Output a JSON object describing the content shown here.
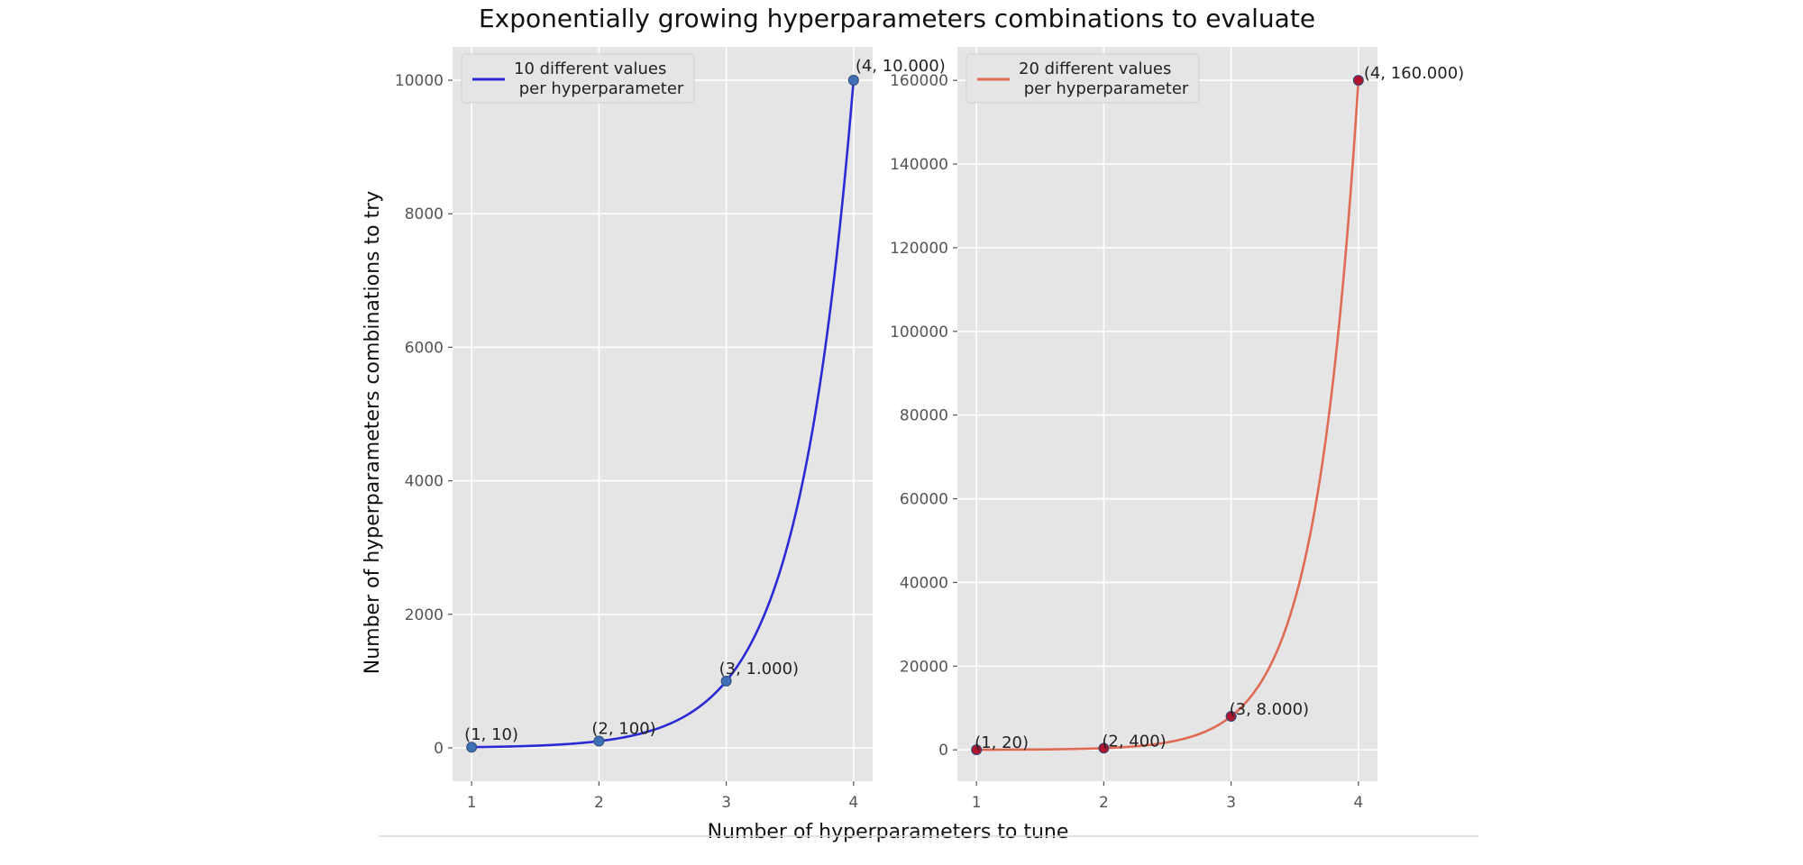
{
  "chart_data": {
    "title": "Exponentially growing hyperparameters combinations to evaluate",
    "xlabel": "Number of hyperparameters to tune",
    "ylabel": "Number of hyperparameters combinations to try",
    "subplots": [
      {
        "type": "line",
        "legend": "10 different values\n per hyperparameter",
        "legend_placement": "top-left",
        "color": "#2b2bd6",
        "marker_color": "#3f6fb5",
        "base": 10,
        "x": [
          1,
          2,
          3,
          4
        ],
        "y": [
          10,
          100,
          1000,
          10000
        ],
        "annotations": [
          "(1,  10)",
          "(2,  100)",
          "(3,  1.000)",
          "(4,  10.000)"
        ],
        "xlim": [
          0.85,
          4.15
        ],
        "ylim": [
          -500,
          10500
        ],
        "xticks": [
          1,
          2,
          3,
          4
        ],
        "yticks": [
          0,
          2000,
          4000,
          6000,
          8000,
          10000
        ],
        "grid": true
      },
      {
        "type": "line",
        "legend": "20 different values\n per hyperparameter",
        "legend_placement": "top-left",
        "color": "#e06b55",
        "marker_color": "#b01530",
        "base": 20,
        "x": [
          1,
          2,
          3,
          4
        ],
        "y": [
          20,
          400,
          8000,
          160000
        ],
        "annotations": [
          "(1,  20)",
          "(2,  400)",
          "(3,  8.000)",
          "(4,  160.000)"
        ],
        "xlim": [
          0.85,
          4.15
        ],
        "ylim": [
          -7500,
          168000
        ],
        "xticks": [
          1,
          2,
          3,
          4
        ],
        "yticks": [
          0,
          20000,
          40000,
          60000,
          80000,
          100000,
          120000,
          140000,
          160000
        ],
        "grid": true
      }
    ]
  }
}
